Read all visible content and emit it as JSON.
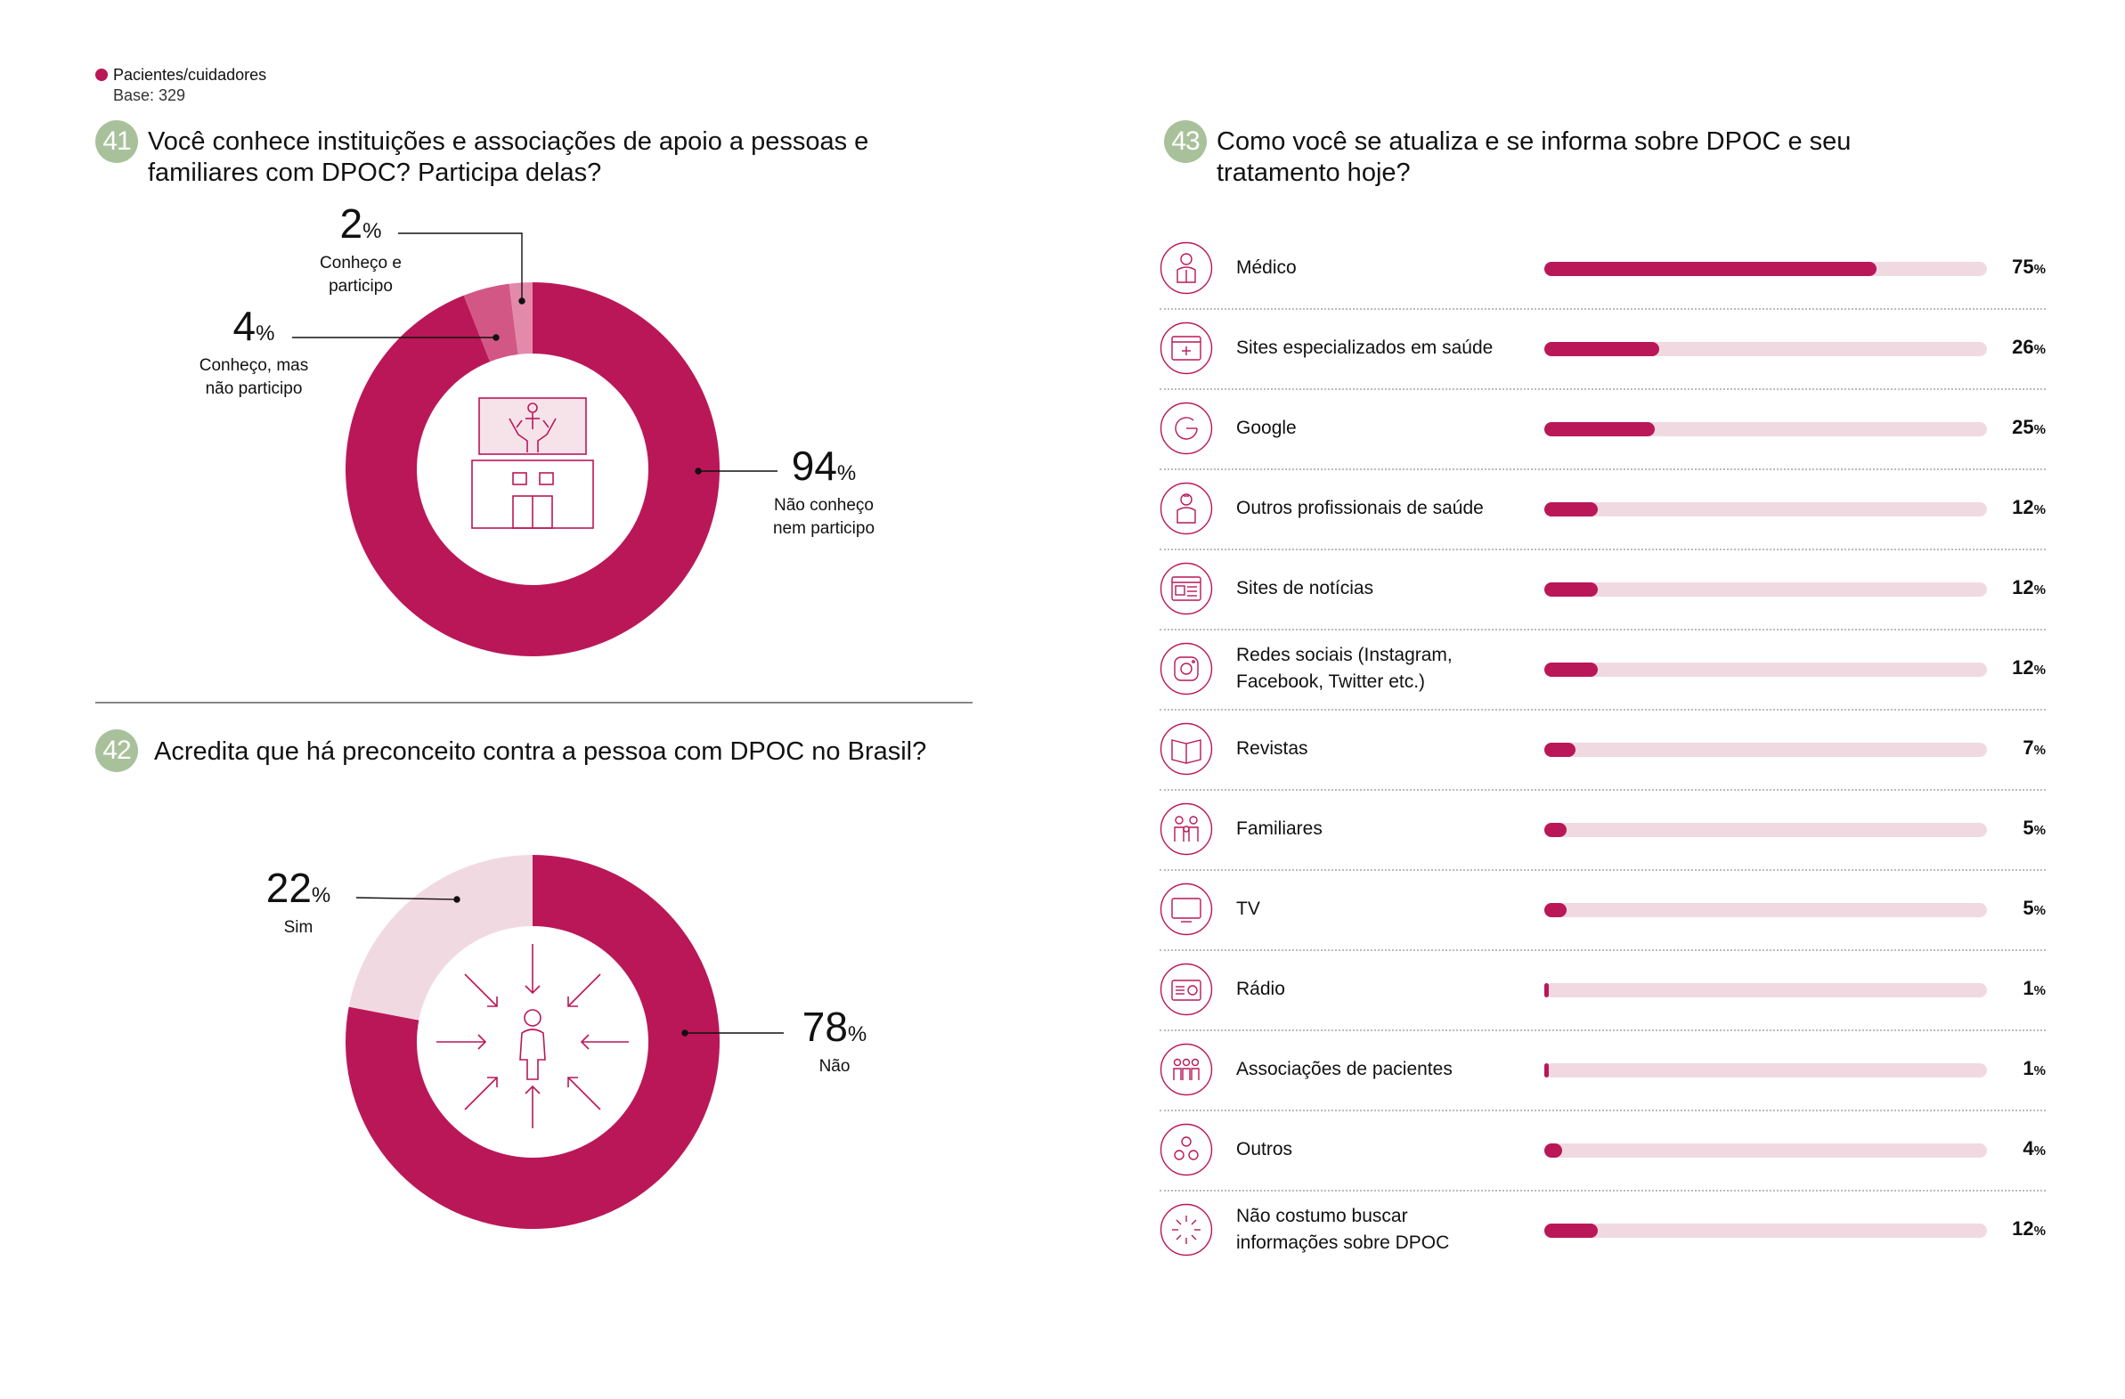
{
  "legend": {
    "label": "Pacientes/cuidadores",
    "base": "Base: 329"
  },
  "colors": {
    "accent": "#BA1759",
    "mid": "#D35785",
    "light": "#E38AAB",
    "track": "#F1D9E2",
    "badge": "#A9C19B"
  },
  "q41": {
    "number": "41",
    "title_line1": "Você conhece instituições e associações de apoio a pessoas e",
    "title_line2": "familiares com DPOC? Participa delas?",
    "pct_sign": "%",
    "labels": [
      {
        "value": "2",
        "line1": "Conheço e",
        "line2": "participo"
      },
      {
        "value": "4",
        "line1": "Conheço, mas",
        "line2": "não participo"
      },
      {
        "value": "94",
        "line1": "Não conheço",
        "line2": "nem participo"
      }
    ],
    "icon": "hands-building-icon"
  },
  "q42": {
    "number": "42",
    "title": "Acredita que há preconceito contra a pessoa com DPOC no Brasil?",
    "pct_sign": "%",
    "labels": [
      {
        "value": "22",
        "line1": "Sim"
      },
      {
        "value": "78",
        "line1": "Não"
      }
    ],
    "icon": "person-arrows-icon"
  },
  "q43": {
    "number": "43",
    "title_line1": "Como você se atualiza e se informa sobre DPOC e seu",
    "title_line2": "tratamento hoje?",
    "pct_sign": "%",
    "items": [
      {
        "line1": "Médico",
        "line2": "",
        "value": "75",
        "icon": "doctor-icon"
      },
      {
        "line1": "Sites especializados em saúde",
        "line2": "",
        "value": "26",
        "icon": "health-website-icon"
      },
      {
        "line1": "Google",
        "line2": "",
        "value": "25",
        "icon": "google-icon"
      },
      {
        "line1": "Outros profissionais de saúde",
        "line2": "",
        "value": "12",
        "icon": "nurse-icon"
      },
      {
        "line1": "Sites de notícias",
        "line2": "",
        "value": "12",
        "icon": "news-website-icon"
      },
      {
        "line1": "Redes sociais (Instagram,",
        "line2": "Facebook, Twitter etc.)",
        "value": "12",
        "icon": "instagram-icon"
      },
      {
        "line1": "Revistas",
        "line2": "",
        "value": "7",
        "icon": "magazine-icon"
      },
      {
        "line1": "Familiares",
        "line2": "",
        "value": "5",
        "icon": "family-icon"
      },
      {
        "line1": "TV",
        "line2": "",
        "value": "5",
        "icon": "tv-icon"
      },
      {
        "line1": "Rádio",
        "line2": "",
        "value": "1",
        "icon": "radio-icon"
      },
      {
        "line1": "Associações de pacientes",
        "line2": "",
        "value": "1",
        "icon": "group-icon"
      },
      {
        "line1": "Outros",
        "line2": "",
        "value": "4",
        "icon": "circles-icon"
      },
      {
        "line1": "Não costumo buscar",
        "line2": "informações sobre DPOC",
        "value": "12",
        "icon": "sparkle-icon"
      }
    ]
  },
  "chart_data": [
    {
      "type": "pie",
      "title": "Você conhece instituições e associações de apoio a pessoas e familiares com DPOC? Participa delas?",
      "categories": [
        "Conheço e participo",
        "Conheço, mas não participo",
        "Não conheço nem participo"
      ],
      "values": [
        2,
        4,
        94
      ],
      "unit": "%",
      "donut": true
    },
    {
      "type": "pie",
      "title": "Acredita que há preconceito contra a pessoa com DPOC no Brasil?",
      "categories": [
        "Sim",
        "Não"
      ],
      "values": [
        22,
        78
      ],
      "unit": "%",
      "donut": true
    },
    {
      "type": "bar",
      "orientation": "horizontal",
      "title": "Como você se atualiza e se informa sobre DPOC e seu tratamento hoje?",
      "categories": [
        "Médico",
        "Sites especializados em saúde",
        "Google",
        "Outros profissionais de saúde",
        "Sites de notícias",
        "Redes sociais (Instagram, Facebook, Twitter etc.)",
        "Revistas",
        "Familiares",
        "TV",
        "Rádio",
        "Associações de pacientes",
        "Outros",
        "Não costumo buscar informações sobre DPOC"
      ],
      "values": [
        75,
        26,
        25,
        12,
        12,
        12,
        7,
        5,
        5,
        1,
        1,
        4,
        12
      ],
      "unit": "%",
      "xlim": [
        0,
        100
      ]
    }
  ]
}
